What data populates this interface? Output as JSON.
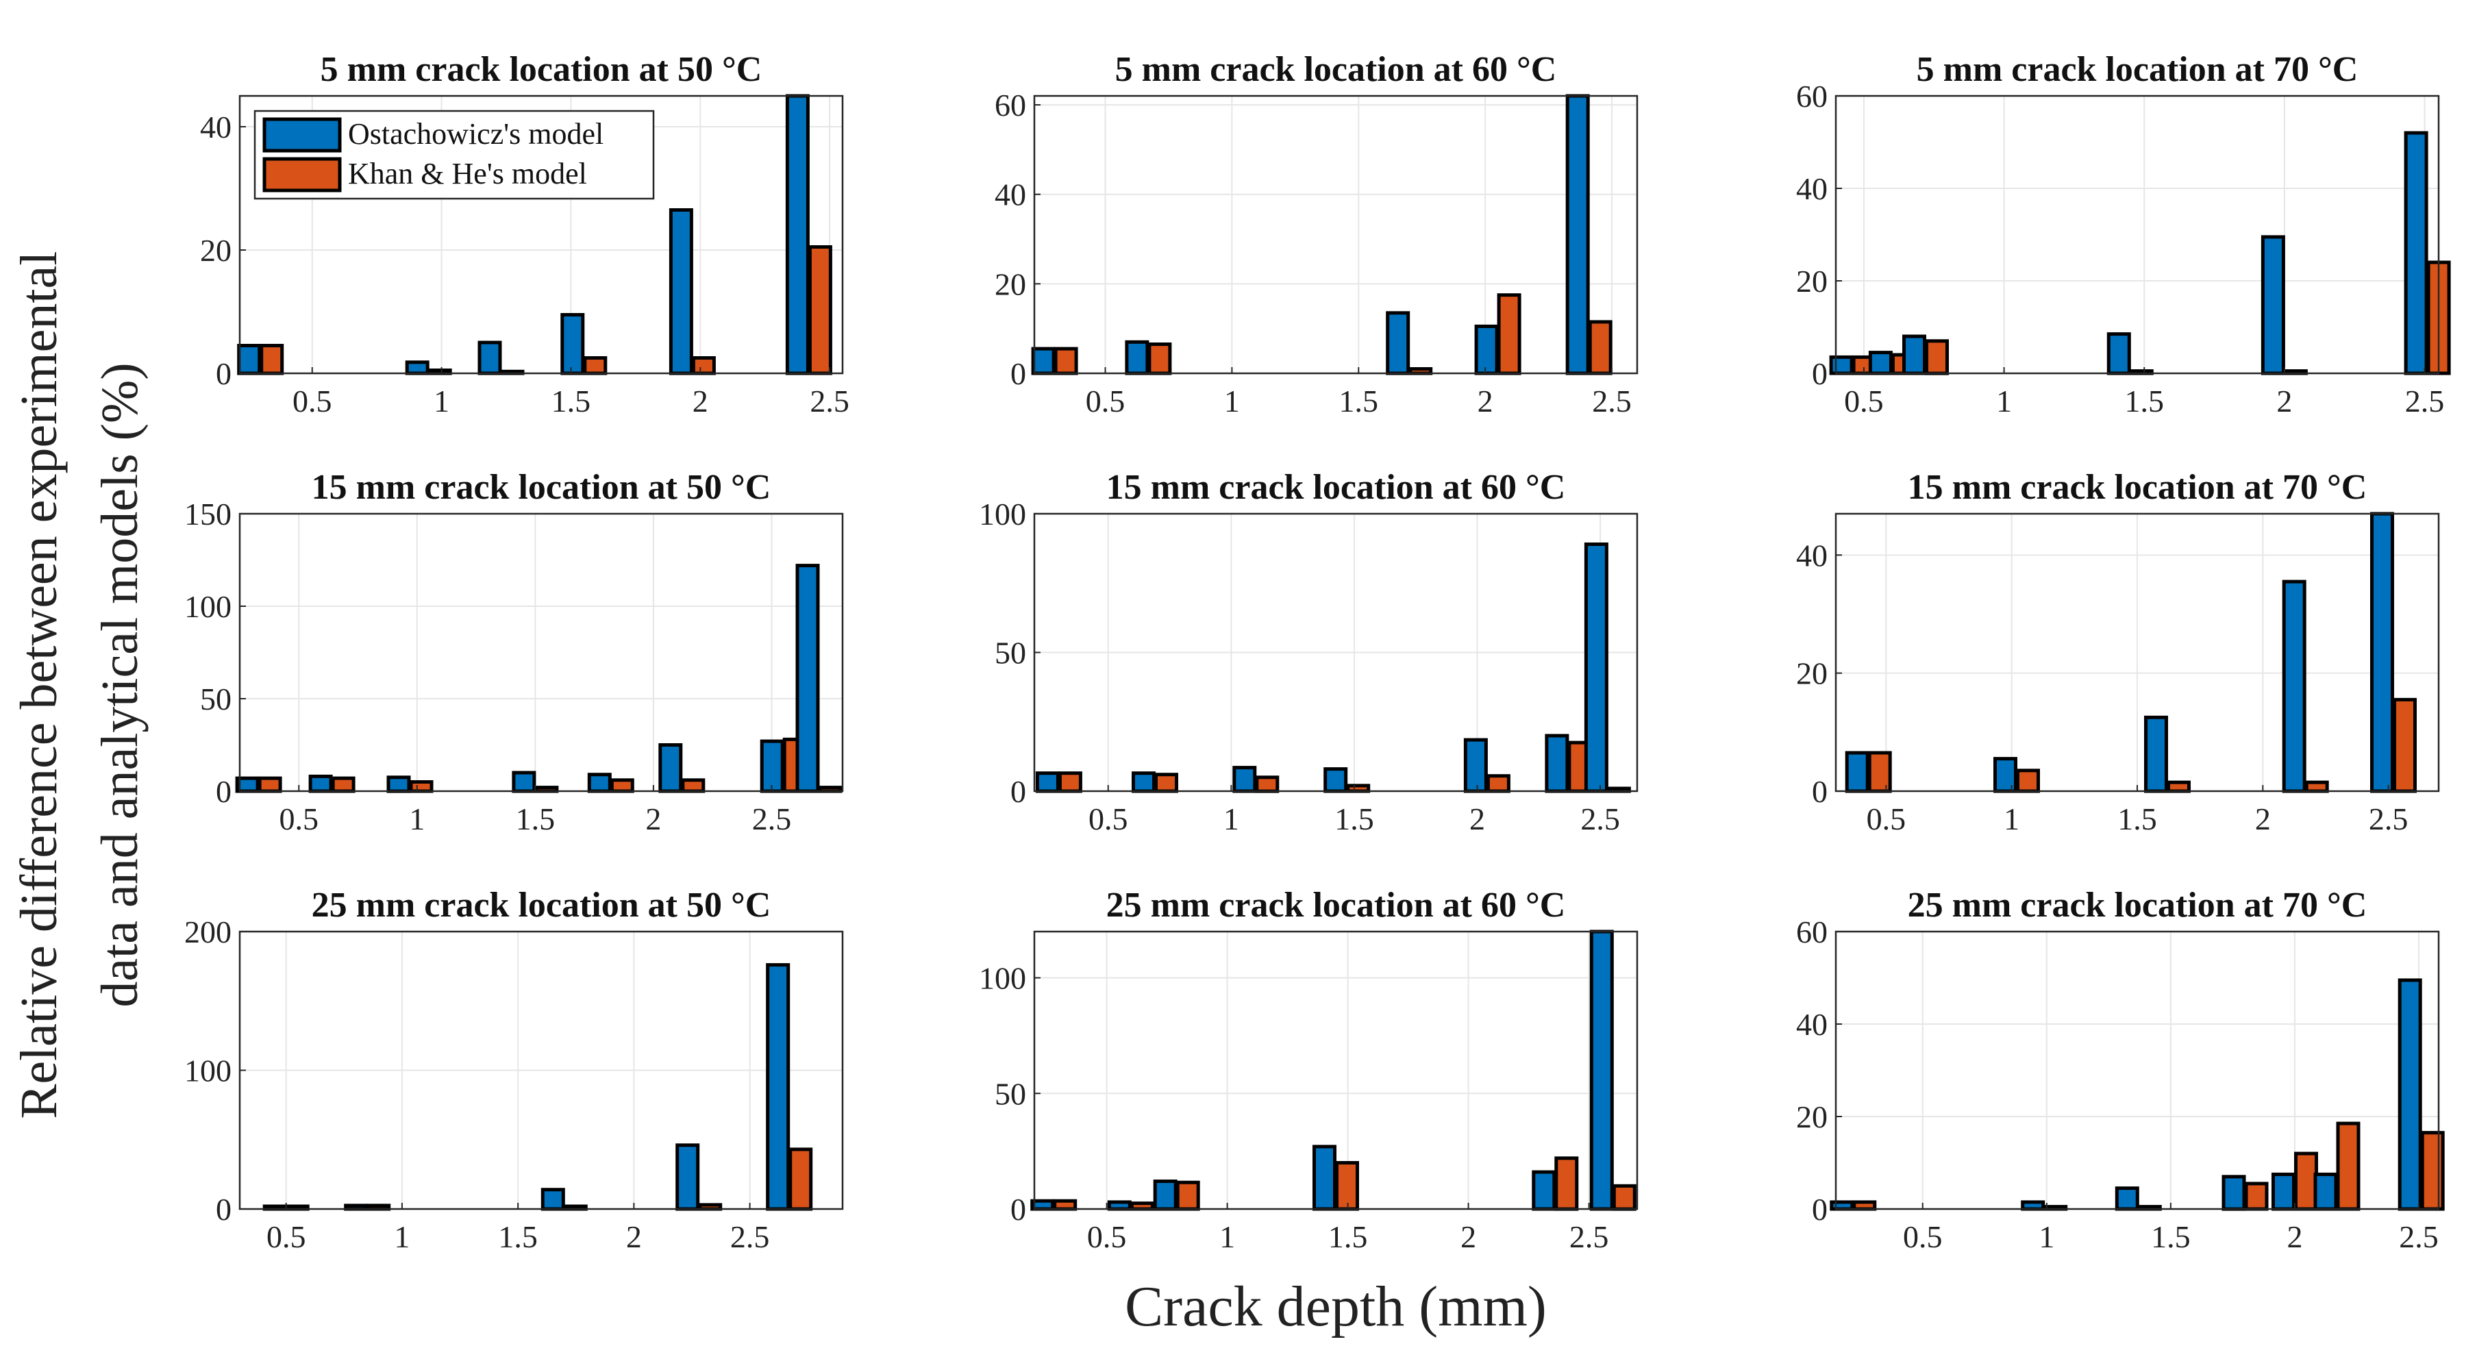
{
  "figure": {
    "ylabel_line1": "Relative difference between experimental",
    "ylabel_line2": "data and analytical models (%)",
    "xlabel": "Crack depth (mm)",
    "colors": {
      "ostachowicz": "#0072BD",
      "khan_he": "#D95319",
      "grid": "#e6e6e6",
      "edge": "#000000"
    }
  },
  "legend": {
    "entries": [
      "Ostachowicz's model",
      "Khan & He's model"
    ],
    "placement": "top-left of first panel"
  },
  "chart_data": [
    {
      "type": "bar",
      "title": "5 mm crack location at 50 °C",
      "xlim": [
        0.22,
        2.55
      ],
      "ylim": [
        0,
        45
      ],
      "xticks": [
        0.5,
        1,
        1.5,
        2,
        2.5
      ],
      "xtick_labels": [
        "0.5",
        "1",
        "1.5",
        "2",
        "2.5"
      ],
      "yticks": [
        0,
        20,
        40
      ],
      "ytick_labels": [
        "0",
        "20",
        "40"
      ],
      "x": [
        0.3,
        0.95,
        1.23,
        1.55,
        1.97,
        2.42
      ],
      "series": [
        {
          "name": "Ostachowicz's model",
          "values": [
            4.5,
            1.8,
            5.0,
            9.5,
            26.5,
            45
          ]
        },
        {
          "name": "Khan & He's model",
          "values": [
            4.5,
            0.5,
            0.3,
            2.5,
            2.5,
            20.5
          ]
        }
      ]
    },
    {
      "type": "bar",
      "title": "5 mm crack location at 60 °C",
      "xlim": [
        0.22,
        2.6
      ],
      "ylim": [
        0,
        62
      ],
      "xticks": [
        0.5,
        1,
        1.5,
        2,
        2.5
      ],
      "xtick_labels": [
        "0.5",
        "1",
        "1.5",
        "2",
        "2.5"
      ],
      "yticks": [
        0,
        20,
        40,
        60
      ],
      "ytick_labels": [
        "0",
        "20",
        "40",
        "60"
      ],
      "x": [
        0.3,
        0.67,
        1.7,
        2.05,
        2.41
      ],
      "series": [
        {
          "name": "Ostachowicz's model",
          "values": [
            5.5,
            7.0,
            13.5,
            10.5,
            62
          ]
        },
        {
          "name": "Khan & He's model",
          "values": [
            5.5,
            6.5,
            1.0,
            17.5,
            11.5
          ]
        }
      ]
    },
    {
      "type": "bar",
      "title": "5 mm crack location at 70 °C",
      "xlim": [
        0.4,
        2.55
      ],
      "ylim": [
        0,
        60
      ],
      "xticks": [
        0.5,
        1,
        1.5,
        2,
        2.5
      ],
      "xtick_labels": [
        "0.5",
        "1",
        "1.5",
        "2",
        "2.5"
      ],
      "yticks": [
        0,
        20,
        40,
        60
      ],
      "ytick_labels": [
        "0",
        "20",
        "40",
        "60"
      ],
      "x": [
        0.46,
        0.6,
        0.72,
        1.45,
        2.0,
        2.51
      ],
      "series": [
        {
          "name": "Ostachowicz's model",
          "values": [
            3.5,
            4.5,
            8.0,
            8.5,
            29.5,
            52
          ]
        },
        {
          "name": "Khan & He's model",
          "values": [
            3.5,
            4.0,
            7.0,
            0.5,
            0.5,
            24
          ]
        }
      ]
    },
    {
      "type": "bar",
      "title": "15 mm crack location at 50 °C",
      "xlim": [
        0.25,
        2.8
      ],
      "ylim": [
        0,
        150
      ],
      "xticks": [
        0.5,
        1,
        1.5,
        2,
        2.5
      ],
      "xtick_labels": [
        "0.5",
        "1",
        "1.5",
        "2",
        "2.5"
      ],
      "yticks": [
        0,
        50,
        100,
        150
      ],
      "ytick_labels": [
        "0",
        "50",
        "100",
        "150"
      ],
      "x": [
        0.33,
        0.64,
        0.97,
        1.5,
        1.82,
        2.12,
        2.55,
        2.7
      ],
      "series": [
        {
          "name": "Ostachowicz's model",
          "values": [
            7,
            8,
            7.5,
            10,
            9,
            25,
            27,
            122
          ]
        },
        {
          "name": "Khan & He's model",
          "values": [
            7,
            7,
            5,
            2,
            6,
            6,
            28,
            2
          ]
        }
      ]
    },
    {
      "type": "bar",
      "title": "15 mm crack location at 60 °C",
      "xlim": [
        0.2,
        2.65
      ],
      "ylim": [
        0,
        100
      ],
      "xticks": [
        0.5,
        1,
        1.5,
        2,
        2.5
      ],
      "xtick_labels": [
        "0.5",
        "1",
        "1.5",
        "2",
        "2.5"
      ],
      "yticks": [
        0,
        50,
        100
      ],
      "ytick_labels": [
        "0",
        "50",
        "100"
      ],
      "x": [
        0.3,
        0.69,
        1.1,
        1.47,
        2.04,
        2.37,
        2.53
      ],
      "series": [
        {
          "name": "Ostachowicz's model",
          "values": [
            6.5,
            6.5,
            8.5,
            8.0,
            18.5,
            20,
            89
          ]
        },
        {
          "name": "Khan & He's model",
          "values": [
            6.5,
            6,
            5,
            2,
            5.5,
            17.5,
            1
          ]
        }
      ]
    },
    {
      "type": "bar",
      "title": "15 mm crack location at 70 °C",
      "xlim": [
        0.3,
        2.7
      ],
      "ylim": [
        0,
        47
      ],
      "xticks": [
        0.5,
        1,
        1.5,
        2,
        2.5
      ],
      "xtick_labels": [
        "0.5",
        "1",
        "1.5",
        "2",
        "2.5"
      ],
      "yticks": [
        0,
        20,
        40
      ],
      "ytick_labels": [
        "0",
        "20",
        "40"
      ],
      "x": [
        0.43,
        1.02,
        1.62,
        2.17,
        2.52
      ],
      "series": [
        {
          "name": "Ostachowicz's model",
          "values": [
            6.5,
            5.5,
            12.5,
            35.5,
            47
          ]
        },
        {
          "name": "Khan & He's model",
          "values": [
            6.5,
            3.5,
            1.5,
            1.5,
            15.5
          ]
        }
      ]
    },
    {
      "type": "bar",
      "title": "25 mm crack location at 50 °C",
      "xlim": [
        0.3,
        2.9
      ],
      "ylim": [
        0,
        200
      ],
      "xticks": [
        0.5,
        1,
        1.5,
        2,
        2.5
      ],
      "xtick_labels": [
        "0.5",
        "1",
        "1.5",
        "2",
        "2.5"
      ],
      "yticks": [
        0,
        100,
        200
      ],
      "ytick_labels": [
        "0",
        "100",
        "200"
      ],
      "x": [
        0.5,
        0.85,
        1.7,
        2.28,
        2.67
      ],
      "series": [
        {
          "name": "Ostachowicz's model",
          "values": [
            2,
            2.5,
            14,
            46,
            176
          ]
        },
        {
          "name": "Khan & He's model",
          "values": [
            2,
            2.5,
            2,
            3,
            43
          ]
        }
      ]
    },
    {
      "type": "bar",
      "title": "25 mm crack location at 60 °C",
      "xlim": [
        0.2,
        2.7
      ],
      "ylim": [
        0,
        120
      ],
      "xticks": [
        0.5,
        1,
        1.5,
        2,
        2.5
      ],
      "xtick_labels": [
        "0.5",
        "1",
        "1.5",
        "2",
        "2.5"
      ],
      "yticks": [
        0,
        50,
        100
      ],
      "ytick_labels": [
        "0",
        "50",
        "100"
      ],
      "x": [
        0.28,
        0.6,
        0.79,
        1.45,
        2.36,
        2.6
      ],
      "series": [
        {
          "name": "Ostachowicz's model",
          "values": [
            3.5,
            3,
            12,
            27,
            16,
            120
          ]
        },
        {
          "name": "Khan & He's model",
          "values": [
            3.5,
            2.5,
            11.5,
            20,
            22,
            10
          ]
        }
      ]
    },
    {
      "type": "bar",
      "title": "25 mm crack location at 70 °C",
      "xlim": [
        0.15,
        2.58
      ],
      "ylim": [
        0,
        60
      ],
      "xticks": [
        0.5,
        1,
        1.5,
        2,
        2.5
      ],
      "xtick_labels": [
        "0.5",
        "1",
        "1.5",
        "2",
        "2.5"
      ],
      "yticks": [
        0,
        20,
        40,
        60
      ],
      "ytick_labels": [
        "0",
        "20",
        "40",
        "60"
      ],
      "x": [
        0.22,
        0.99,
        1.37,
        1.8,
        2.0,
        2.17,
        2.51
      ],
      "series": [
        {
          "name": "Ostachowicz's model",
          "values": [
            1.5,
            1.5,
            4.5,
            7,
            7.5,
            7.5,
            49.5
          ]
        },
        {
          "name": "Khan & He's model",
          "values": [
            1.5,
            0.5,
            0.5,
            5.5,
            12,
            18.5,
            16.5
          ]
        }
      ]
    }
  ]
}
